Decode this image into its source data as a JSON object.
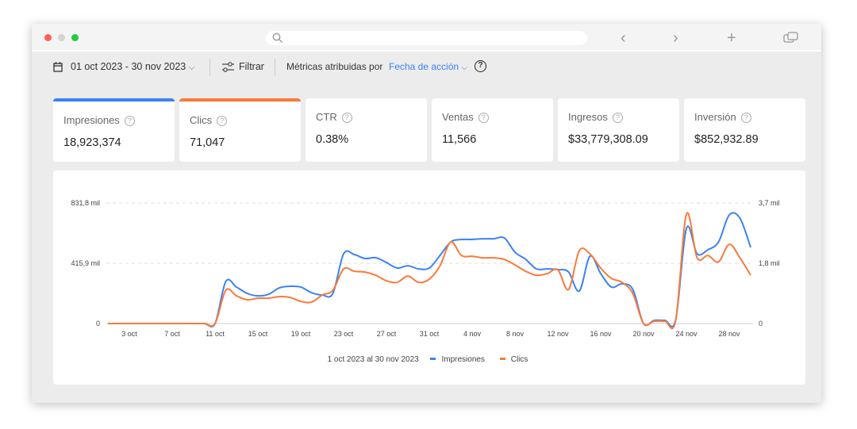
{
  "toolbar": {
    "date_range": "01 oct 2023 - 30 nov 2023",
    "filter_label": "Filtrar",
    "attrib_label": "Métricas atribuidas por",
    "attrib_value": "Fecha de acción"
  },
  "metrics": [
    {
      "label": "Impresiones",
      "value": "18,923,374",
      "color": "#3b82f6"
    },
    {
      "label": "Clics",
      "value": "71,047",
      "color": "#f97a3a"
    },
    {
      "label": "CTR",
      "value": "0.38%"
    },
    {
      "label": "Ventas",
      "value": "11,566"
    },
    {
      "label": "Ingresos",
      "value": "$33,779,308.09"
    },
    {
      "label": "Inversión",
      "value": "$852,932.89"
    }
  ],
  "chart_data": {
    "type": "line",
    "x_start": "1 oct 2023",
    "days": 61,
    "x_tick_labels": [
      "3 oct",
      "7 oct",
      "11 oct",
      "15 oct",
      "19 oct",
      "23 oct",
      "27 oct",
      "31 oct",
      "4 nov",
      "8 nov",
      "12 nov",
      "16 nov",
      "20 nov",
      "24 nov",
      "28 nov"
    ],
    "y_left_ticks": [
      "0",
      "415,9 mil",
      "831,8 mil"
    ],
    "y_left_range": [
      0,
      831800
    ],
    "y_right_ticks": [
      "0",
      "1,8 mil",
      "3,7 mil"
    ],
    "y_right_range": [
      0,
      3700
    ],
    "legend_period": "1 oct 2023 al 30 nov 2023",
    "series": [
      {
        "name": "Impresiones",
        "axis": "left",
        "color": "#3b82f6",
        "values": [
          0,
          0,
          0,
          0,
          0,
          0,
          0,
          0,
          0,
          0,
          0,
          290000,
          252000,
          208000,
          191000,
          202000,
          246000,
          257000,
          252000,
          213000,
          197000,
          208000,
          481000,
          476000,
          449000,
          454000,
          421000,
          383000,
          399000,
          377000,
          383000,
          470000,
          563000,
          580000,
          580000,
          585000,
          585000,
          591000,
          492000,
          443000,
          377000,
          377000,
          372000,
          356000,
          224000,
          465000,
          345000,
          252000,
          274000,
          235000,
          0,
          22000,
          22000,
          27000,
          656000,
          481000,
          509000,
          563000,
          749000,
          727000,
          525000
        ]
      },
      {
        "name": "Clics",
        "axis": "right",
        "color": "#f97a3a",
        "values": [
          0,
          0,
          0,
          0,
          0,
          0,
          0,
          0,
          0,
          0,
          0,
          1020,
          851,
          729,
          778,
          778,
          826,
          802,
          680,
          656,
          875,
          1020,
          1677,
          1604,
          1580,
          1482,
          1312,
          1264,
          1458,
          1264,
          1361,
          1774,
          2503,
          2090,
          2066,
          2017,
          2017,
          1969,
          1798,
          1604,
          1482,
          1531,
          1652,
          1045,
          2236,
          2139,
          1701,
          1385,
          1264,
          923,
          0,
          73,
          73,
          97,
          3355,
          2017,
          2090,
          1895,
          2430,
          2017,
          1482
        ]
      }
    ]
  }
}
